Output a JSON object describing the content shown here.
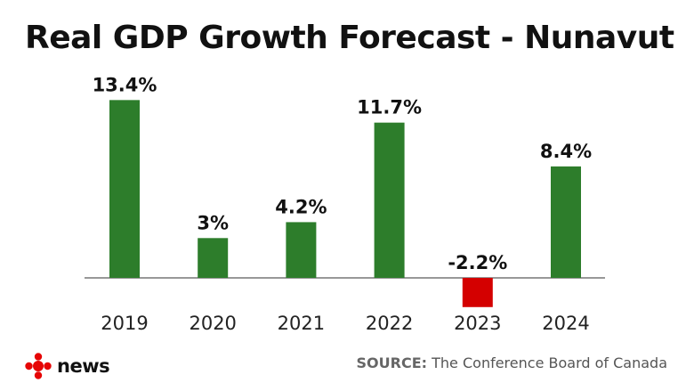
{
  "header": {
    "title": "Real GDP Growth Forecast - Nunavut"
  },
  "chart_data": {
    "type": "bar",
    "title": "Real GDP Growth Forecast - Nunavut",
    "xlabel": "",
    "ylabel": "",
    "categories": [
      "2019",
      "2020",
      "2021",
      "2022",
      "2023",
      "2024"
    ],
    "values": [
      13.4,
      3,
      4.2,
      11.7,
      -2.2,
      8.4
    ],
    "data_labels": [
      "13.4%",
      "3%",
      "4.2%",
      "11.7%",
      "-2.2%",
      "8.4%"
    ],
    "ylim": [
      -2.2,
      13.4
    ],
    "grid": false,
    "colors": {
      "positive": "#2d7d2b",
      "negative": "#d40000",
      "baseline": "#777777"
    }
  },
  "footer": {
    "logo_text": "news",
    "source_key": "SOURCE:",
    "source_value": " The Conference Board of Canada"
  },
  "icons": {
    "logo": "cbc-gem-icon"
  }
}
